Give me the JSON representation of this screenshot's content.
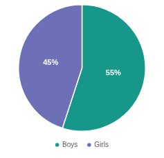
{
  "chart_data": {
    "type": "pie",
    "categories": [
      "Boys",
      "Girls"
    ],
    "values": [
      55,
      45
    ],
    "value_labels": [
      "55%",
      "45%"
    ],
    "colors": [
      "#17978a",
      "#6d70b6"
    ],
    "data_labels": true,
    "legend": "bottom"
  }
}
